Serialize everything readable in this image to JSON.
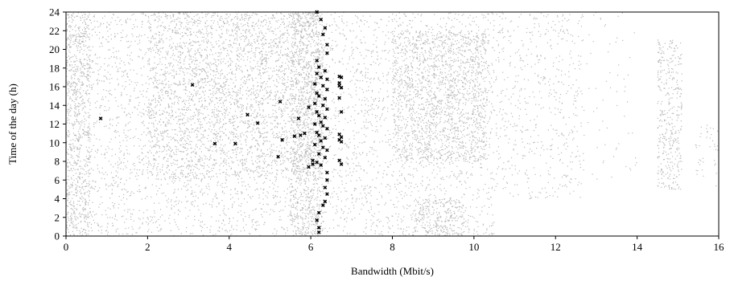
{
  "chart_data": {
    "type": "scatter",
    "title": "",
    "xlabel": "Bandwidth (Mbit/s)",
    "ylabel": "Time of the day (h)",
    "xlim": [
      0,
      16
    ],
    "ylim": [
      0,
      24
    ],
    "xticks": [
      0,
      2,
      4,
      6,
      8,
      10,
      12,
      14,
      16
    ],
    "yticks": [
      0,
      2,
      4,
      6,
      8,
      10,
      12,
      14,
      16,
      18,
      20,
      22,
      24
    ],
    "grid": false,
    "legend": "none",
    "series": [
      {
        "marker": "dot",
        "color": "#b8b8b8",
        "clusters": [
          {
            "x_range": [
              0,
              0.6
            ],
            "y_range": [
              0,
              24
            ],
            "count": 950
          },
          {
            "x_range": [
              0.6,
              6.2
            ],
            "y_range": [
              0,
              24
            ],
            "count": 2500
          },
          {
            "x_range": [
              2.0,
              6.3
            ],
            "y_range": [
              6,
              24
            ],
            "count": 2300
          },
          {
            "x_range": [
              5.5,
              6.3
            ],
            "y_range": [
              0,
              24
            ],
            "count": 900
          },
          {
            "x_range": [
              6.3,
              7.0
            ],
            "y_range": [
              0,
              24
            ],
            "count": 250
          },
          {
            "x_range": [
              7.0,
              10.5
            ],
            "y_range": [
              0,
              24
            ],
            "count": 1500
          },
          {
            "x_range": [
              8.0,
              10.3
            ],
            "y_range": [
              8,
              22
            ],
            "count": 1400
          },
          {
            "x_range": [
              8.5,
              9.8
            ],
            "y_range": [
              0,
              4
            ],
            "count": 250
          },
          {
            "x_range": [
              10.5,
              12.7
            ],
            "y_range": [
              4,
              24
            ],
            "count": 550
          },
          {
            "x_range": [
              12.7,
              14.0
            ],
            "y_range": [
              6,
              24
            ],
            "count": 60
          },
          {
            "x_range": [
              14.5,
              15.1
            ],
            "y_range": [
              5,
              21
            ],
            "count": 400
          },
          {
            "x_range": [
              15.4,
              16.0
            ],
            "y_range": [
              5,
              12
            ],
            "count": 40
          }
        ]
      },
      {
        "marker": "x",
        "color": "#000000",
        "points": [
          [
            0.85,
            12.6
          ],
          [
            3.1,
            16.2
          ],
          [
            3.65,
            9.9
          ],
          [
            4.15,
            9.9
          ],
          [
            4.45,
            13.0
          ],
          [
            4.7,
            12.1
          ],
          [
            5.2,
            8.5
          ],
          [
            5.25,
            14.4
          ],
          [
            5.3,
            10.3
          ],
          [
            5.6,
            10.7
          ],
          [
            5.75,
            10.8
          ],
          [
            5.7,
            12.6
          ],
          [
            5.85,
            11.0
          ],
          [
            5.95,
            13.8
          ],
          [
            5.95,
            7.4
          ],
          [
            6.05,
            8.1
          ],
          [
            6.05,
            7.7
          ],
          [
            6.15,
            24.0
          ],
          [
            6.25,
            23.2
          ],
          [
            6.35,
            22.3
          ],
          [
            6.3,
            21.6
          ],
          [
            6.4,
            20.5
          ],
          [
            6.4,
            19.6
          ],
          [
            6.15,
            18.8
          ],
          [
            6.2,
            18.1
          ],
          [
            6.35,
            17.7
          ],
          [
            6.15,
            17.4
          ],
          [
            6.25,
            17.0
          ],
          [
            6.4,
            16.8
          ],
          [
            6.1,
            16.3
          ],
          [
            6.3,
            16.1
          ],
          [
            6.4,
            15.7
          ],
          [
            6.15,
            15.3
          ],
          [
            6.2,
            15.0
          ],
          [
            6.35,
            14.7
          ],
          [
            6.1,
            14.2
          ],
          [
            6.3,
            14.0
          ],
          [
            6.4,
            13.6
          ],
          [
            6.15,
            13.3
          ],
          [
            6.2,
            12.9
          ],
          [
            6.35,
            12.7
          ],
          [
            6.25,
            12.2
          ],
          [
            6.1,
            12.0
          ],
          [
            6.3,
            11.8
          ],
          [
            6.4,
            11.5
          ],
          [
            6.15,
            11.1
          ],
          [
            6.2,
            10.8
          ],
          [
            6.35,
            10.5
          ],
          [
            6.25,
            10.2
          ],
          [
            6.1,
            9.8
          ],
          [
            6.3,
            9.5
          ],
          [
            6.4,
            9.2
          ],
          [
            6.2,
            8.8
          ],
          [
            6.35,
            8.4
          ],
          [
            6.15,
            7.9
          ],
          [
            6.25,
            7.6
          ],
          [
            6.4,
            6.8
          ],
          [
            6.4,
            6.0
          ],
          [
            6.35,
            5.2
          ],
          [
            6.4,
            4.5
          ],
          [
            6.35,
            3.7
          ],
          [
            6.3,
            3.3
          ],
          [
            6.2,
            2.5
          ],
          [
            6.15,
            1.7
          ],
          [
            6.2,
            0.9
          ],
          [
            6.2,
            0.4
          ],
          [
            6.7,
            17.1
          ],
          [
            6.75,
            17.0
          ],
          [
            6.7,
            16.4
          ],
          [
            6.7,
            16.1
          ],
          [
            6.75,
            15.9
          ],
          [
            6.7,
            14.8
          ],
          [
            6.75,
            13.3
          ],
          [
            6.7,
            10.9
          ],
          [
            6.75,
            10.6
          ],
          [
            6.7,
            10.3
          ],
          [
            6.75,
            10.1
          ],
          [
            6.7,
            8.1
          ],
          [
            6.75,
            7.7
          ]
        ]
      }
    ]
  }
}
